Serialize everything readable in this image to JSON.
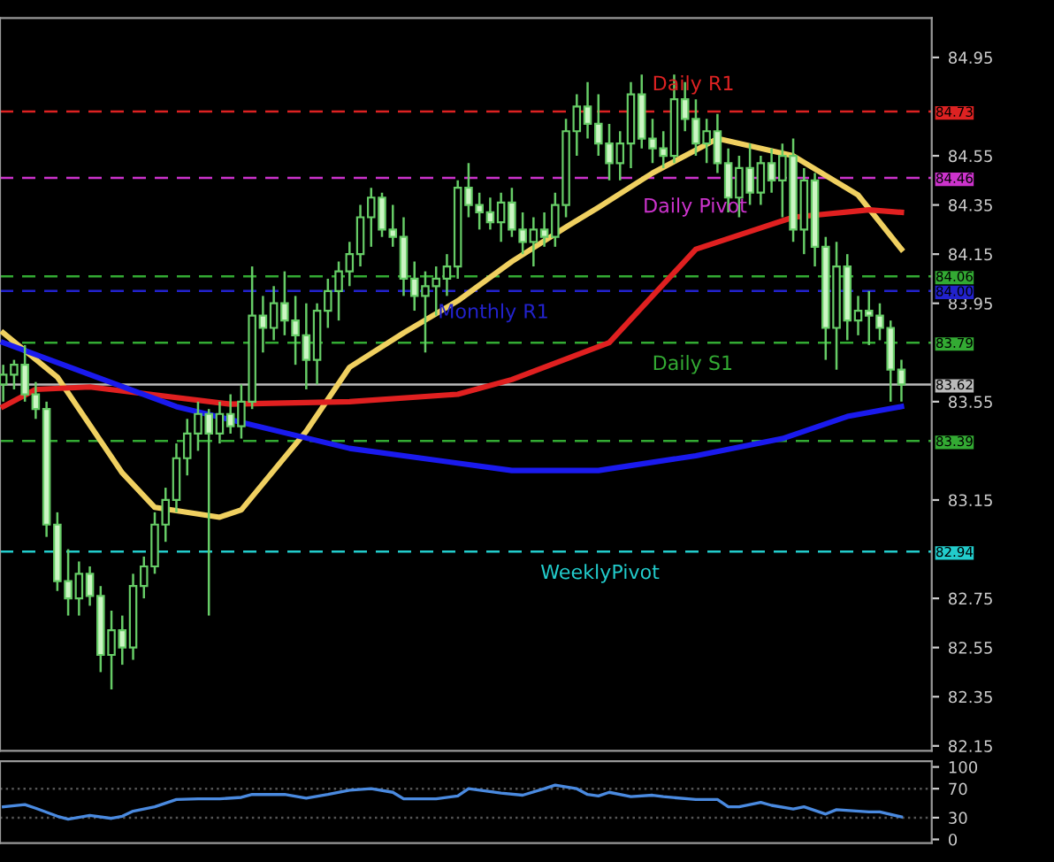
{
  "chart_data": [
    {
      "type": "candlestick",
      "categories": [
        null,
        null,
        null,
        null,
        null,
        null,
        null,
        null,
        null,
        null,
        null,
        null,
        null,
        null,
        null,
        null,
        null,
        null,
        null,
        null,
        null,
        null,
        null,
        null,
        null,
        null,
        null,
        null,
        null,
        null,
        null,
        null,
        null,
        null,
        null,
        null,
        null,
        null,
        null,
        null,
        null,
        null,
        null,
        null,
        null,
        null,
        null,
        null,
        null,
        null,
        null,
        null,
        null,
        null,
        null,
        null,
        null,
        null,
        null,
        null,
        null,
        null,
        null,
        null,
        null,
        null,
        null,
        null,
        null,
        null,
        null,
        null,
        null,
        null,
        null,
        null,
        null,
        null,
        null,
        null,
        null,
        null,
        null,
        null
      ],
      "color": "#66cc66",
      "ohlc": [
        [
          83.62,
          83.7,
          83.55,
          83.66
        ],
        [
          83.66,
          83.72,
          83.6,
          83.7
        ],
        [
          83.7,
          83.78,
          83.55,
          83.58
        ],
        [
          83.58,
          83.63,
          83.48,
          83.52
        ],
        [
          83.52,
          83.55,
          83.0,
          83.05
        ],
        [
          83.05,
          83.1,
          82.78,
          82.82
        ],
        [
          82.82,
          82.95,
          82.68,
          82.75
        ],
        [
          82.75,
          82.9,
          82.68,
          82.85
        ],
        [
          82.85,
          82.88,
          82.72,
          82.76
        ],
        [
          82.76,
          82.8,
          82.45,
          82.52
        ],
        [
          82.52,
          82.7,
          82.38,
          82.62
        ],
        [
          82.62,
          82.68,
          82.48,
          82.55
        ],
        [
          82.55,
          82.85,
          82.5,
          82.8
        ],
        [
          82.8,
          82.92,
          82.75,
          82.88
        ],
        [
          82.88,
          83.1,
          82.85,
          83.05
        ],
        [
          83.05,
          83.2,
          82.98,
          83.15
        ],
        [
          83.15,
          83.38,
          83.1,
          83.32
        ],
        [
          83.32,
          83.48,
          83.25,
          83.42
        ],
        [
          83.42,
          83.55,
          83.35,
          83.5
        ],
        [
          83.5,
          83.52,
          82.68,
          83.42
        ],
        [
          83.42,
          83.55,
          83.38,
          83.5
        ],
        [
          83.5,
          83.58,
          83.42,
          83.45
        ],
        [
          83.45,
          83.62,
          83.4,
          83.55
        ],
        [
          83.55,
          84.1,
          83.52,
          83.9
        ],
        [
          83.9,
          83.98,
          83.75,
          83.85
        ],
        [
          83.85,
          84.02,
          83.8,
          83.95
        ],
        [
          83.95,
          84.08,
          83.82,
          83.88
        ],
        [
          83.88,
          83.98,
          83.7,
          83.82
        ],
        [
          83.82,
          83.95,
          83.6,
          83.72
        ],
        [
          83.72,
          83.95,
          83.62,
          83.92
        ],
        [
          83.92,
          84.05,
          83.85,
          84.0
        ],
        [
          84.0,
          84.12,
          83.88,
          84.08
        ],
        [
          84.08,
          84.2,
          84.02,
          84.15
        ],
        [
          84.15,
          84.35,
          84.1,
          84.3
        ],
        [
          84.3,
          84.42,
          84.18,
          84.38
        ],
        [
          84.38,
          84.4,
          84.22,
          84.25
        ],
        [
          84.25,
          84.35,
          84.18,
          84.22
        ],
        [
          84.22,
          84.3,
          83.98,
          84.05
        ],
        [
          84.05,
          84.12,
          83.92,
          83.98
        ],
        [
          83.98,
          84.08,
          83.75,
          84.02
        ],
        [
          84.02,
          84.1,
          83.9,
          84.05
        ],
        [
          84.05,
          84.15,
          83.98,
          84.1
        ],
        [
          84.1,
          84.45,
          84.05,
          84.42
        ],
        [
          84.42,
          84.52,
          84.3,
          84.35
        ],
        [
          84.35,
          84.4,
          84.25,
          84.32
        ],
        [
          84.32,
          84.38,
          84.25,
          84.28
        ],
        [
          84.28,
          84.4,
          84.2,
          84.36
        ],
        [
          84.36,
          84.42,
          84.22,
          84.25
        ],
        [
          84.25,
          84.32,
          84.15,
          84.2
        ],
        [
          84.2,
          84.3,
          84.1,
          84.25
        ],
        [
          84.25,
          84.32,
          84.18,
          84.22
        ],
        [
          84.22,
          84.4,
          84.18,
          84.35
        ],
        [
          84.35,
          84.7,
          84.3,
          84.65
        ],
        [
          84.65,
          84.8,
          84.55,
          84.75
        ],
        [
          84.75,
          84.85,
          84.62,
          84.68
        ],
        [
          84.68,
          84.8,
          84.55,
          84.6
        ],
        [
          84.6,
          84.68,
          84.45,
          84.52
        ],
        [
          84.52,
          84.65,
          84.45,
          84.6
        ],
        [
          84.6,
          84.85,
          84.5,
          84.8
        ],
        [
          84.8,
          84.88,
          84.58,
          84.62
        ],
        [
          84.62,
          84.7,
          84.52,
          84.58
        ],
        [
          84.58,
          84.65,
          84.5,
          84.55
        ],
        [
          84.55,
          84.88,
          84.52,
          84.78
        ],
        [
          84.78,
          84.85,
          84.65,
          84.7
        ],
        [
          84.7,
          84.78,
          84.55,
          84.6
        ],
        [
          84.6,
          84.7,
          84.52,
          84.65
        ],
        [
          84.65,
          84.72,
          84.48,
          84.52
        ],
        [
          84.52,
          84.58,
          84.32,
          84.38
        ],
        [
          84.38,
          84.55,
          84.3,
          84.5
        ],
        [
          84.5,
          84.6,
          84.35,
          84.4
        ],
        [
          84.4,
          84.55,
          84.35,
          84.52
        ],
        [
          84.52,
          84.58,
          84.4,
          84.45
        ],
        [
          84.45,
          84.6,
          84.3,
          84.55
        ],
        [
          84.55,
          84.62,
          84.2,
          84.25
        ],
        [
          84.25,
          84.5,
          84.15,
          84.45
        ],
        [
          84.45,
          84.48,
          84.1,
          84.18
        ],
        [
          84.18,
          84.22,
          83.72,
          83.85
        ],
        [
          83.85,
          84.2,
          83.68,
          84.1
        ],
        [
          84.1,
          84.15,
          83.8,
          83.88
        ],
        [
          83.88,
          83.98,
          83.82,
          83.92
        ],
        [
          83.92,
          84.0,
          83.78,
          83.9
        ],
        [
          83.9,
          83.95,
          83.8,
          83.85
        ],
        [
          83.85,
          83.88,
          83.55,
          83.68
        ],
        [
          83.68,
          83.72,
          83.55,
          83.62
        ]
      ],
      "series": [
        {
          "type": "line",
          "color": "#f0d060",
          "values": [
            83.83,
            null,
            null,
            null,
            null,
            83.65,
            null,
            null,
            null,
            null,
            null,
            83.26,
            null,
            null,
            83.12,
            null,
            null,
            null,
            null,
            null,
            83.08,
            null,
            83.11,
            null,
            null,
            null,
            null,
            null,
            83.43,
            null,
            null,
            null,
            83.69,
            null,
            null,
            null,
            null,
            83.83,
            null,
            null,
            null,
            null,
            83.96,
            null,
            null,
            null,
            null,
            84.12,
            null,
            null,
            null,
            null,
            84.26,
            null,
            null,
            84.34,
            null,
            null,
            null,
            null,
            84.48,
            null,
            null,
            null,
            null,
            null,
            84.62,
            null,
            null,
            null,
            null,
            null,
            null,
            84.55,
            null,
            null,
            null,
            null,
            null,
            84.39,
            null,
            null,
            null,
            84.17
          ]
        },
        {
          "type": "line",
          "color": "#e02020",
          "values": [
            83.53,
            null,
            null,
            83.6,
            null,
            null,
            null,
            null,
            83.61,
            null,
            null,
            null,
            null,
            null,
            null,
            null,
            null,
            null,
            null,
            null,
            null,
            83.54,
            null,
            null,
            null,
            null,
            null,
            null,
            null,
            null,
            null,
            null,
            83.55,
            null,
            null,
            null,
            null,
            null,
            null,
            null,
            null,
            null,
            83.58,
            null,
            null,
            null,
            null,
            83.64,
            null,
            null,
            null,
            null,
            null,
            null,
            null,
            null,
            83.79,
            null,
            null,
            null,
            null,
            null,
            null,
            null,
            84.17,
            null,
            null,
            null,
            null,
            null,
            null,
            null,
            null,
            84.3,
            null,
            null,
            null,
            null,
            null,
            null,
            84.33,
            null,
            null,
            84.32
          ]
        },
        {
          "type": "line",
          "color": "#1a1aee",
          "values": [
            83.79,
            null,
            null,
            null,
            null,
            null,
            null,
            null,
            null,
            null,
            null,
            null,
            null,
            null,
            null,
            null,
            83.53,
            null,
            null,
            null,
            null,
            null,
            null,
            null,
            null,
            null,
            null,
            null,
            null,
            null,
            null,
            null,
            83.36,
            null,
            null,
            null,
            null,
            null,
            null,
            null,
            null,
            null,
            null,
            null,
            null,
            null,
            null,
            83.27,
            null,
            null,
            null,
            null,
            null,
            null,
            null,
            83.27,
            null,
            null,
            null,
            null,
            null,
            null,
            null,
            null,
            83.33,
            null,
            null,
            null,
            null,
            null,
            null,
            null,
            83.4,
            null,
            null,
            null,
            null,
            null,
            83.49,
            null,
            null,
            null,
            null,
            83.53
          ]
        }
      ],
      "ref_lines": [
        {
          "axis": "y",
          "value": 84.73,
          "label": "84.73",
          "color": "#dd2222",
          "line_style": "dashed"
        },
        {
          "axis": "y",
          "value": 84.46,
          "label": "84.46",
          "color": "#cc33cc",
          "line_style": "dashed"
        },
        {
          "axis": "y",
          "value": 84.06,
          "label": "84.06",
          "color": "#33aa33",
          "line_style": "dashed"
        },
        {
          "axis": "y",
          "value": 84.0,
          "label": "84.00",
          "color": "#2222cc",
          "line_style": "dashed"
        },
        {
          "axis": "y",
          "value": 83.79,
          "label": "83.79",
          "color": "#33aa33",
          "line_style": "dashed"
        },
        {
          "axis": "y",
          "value": 83.62,
          "label": "83.62",
          "color": "#bbbbbb",
          "line_style": "solid"
        },
        {
          "axis": "y",
          "value": 83.39,
          "label": "83.39",
          "color": "#33aa33",
          "line_style": "dashed"
        },
        {
          "axis": "y",
          "value": 82.94,
          "label": "82.94",
          "color": "#22cccc",
          "line_style": "dashed"
        }
      ],
      "annotations": [
        {
          "text": "Daily R1",
          "y": 84.73
        },
        {
          "text": "Daily Pivot",
          "y": 84.46
        },
        {
          "text": "Monthly R1",
          "y": 84.0
        },
        {
          "text": "Daily S1",
          "y": 83.79
        },
        {
          "text": "WeeklyPivot",
          "y": 82.94
        }
      ],
      "ylim": [
        82.13,
        85.11
      ],
      "yticks": [
        84.95,
        84.55,
        84.35,
        84.15,
        83.95,
        83.55,
        83.15,
        82.75,
        82.55,
        82.35,
        82.15
      ],
      "tick_labels": "y",
      "grid": false,
      "legend": false
    },
    {
      "type": "line",
      "categories": [
        null,
        null,
        null,
        null,
        null,
        null,
        null,
        null,
        null,
        null,
        null,
        null,
        null,
        null,
        null,
        null,
        null,
        null,
        null,
        null,
        null,
        null,
        null,
        null,
        null,
        null,
        null,
        null,
        null,
        null,
        null,
        null,
        null,
        null,
        null,
        null,
        null,
        null,
        null,
        null,
        null,
        null,
        null,
        null,
        null,
        null,
        null,
        null,
        null,
        null,
        null,
        null,
        null,
        null,
        null,
        null,
        null,
        null,
        null,
        null,
        null,
        null,
        null,
        null,
        null,
        null,
        null,
        null,
        null,
        null,
        null,
        null,
        null,
        null,
        null,
        null,
        null,
        null,
        null,
        null,
        null,
        null,
        null,
        null
      ],
      "series": [
        {
          "color": "#4a8ae0",
          "values": [
            45,
            null,
            48,
            43,
            null,
            32,
            28,
            null,
            33,
            null,
            29,
            32,
            39,
            null,
            45,
            null,
            55,
            null,
            56,
            null,
            56,
            null,
            58,
            62,
            null,
            null,
            62,
            null,
            57,
            null,
            62,
            null,
            68,
            null,
            70,
            null,
            65,
            56,
            null,
            null,
            56,
            null,
            60,
            70,
            null,
            null,
            64,
            null,
            61,
            null,
            70,
            75,
            null,
            70,
            62,
            60,
            65,
            null,
            59,
            null,
            61,
            59,
            null,
            null,
            55,
            null,
            55,
            45,
            45,
            null,
            51,
            47,
            null,
            42,
            45,
            null,
            35,
            41,
            null,
            null,
            38,
            38,
            null,
            31
          ]
        }
      ],
      "ref_lines": [
        {
          "axis": "y",
          "value": 30,
          "color": "#555555",
          "line_style": "dotted"
        },
        {
          "axis": "y",
          "value": 70,
          "color": "#555555",
          "line_style": "dotted"
        }
      ],
      "ylim": [
        -5,
        108
      ],
      "yticks": [
        0,
        30,
        70,
        100
      ],
      "tick_labels": "y",
      "grid": false,
      "legend": false
    }
  ]
}
